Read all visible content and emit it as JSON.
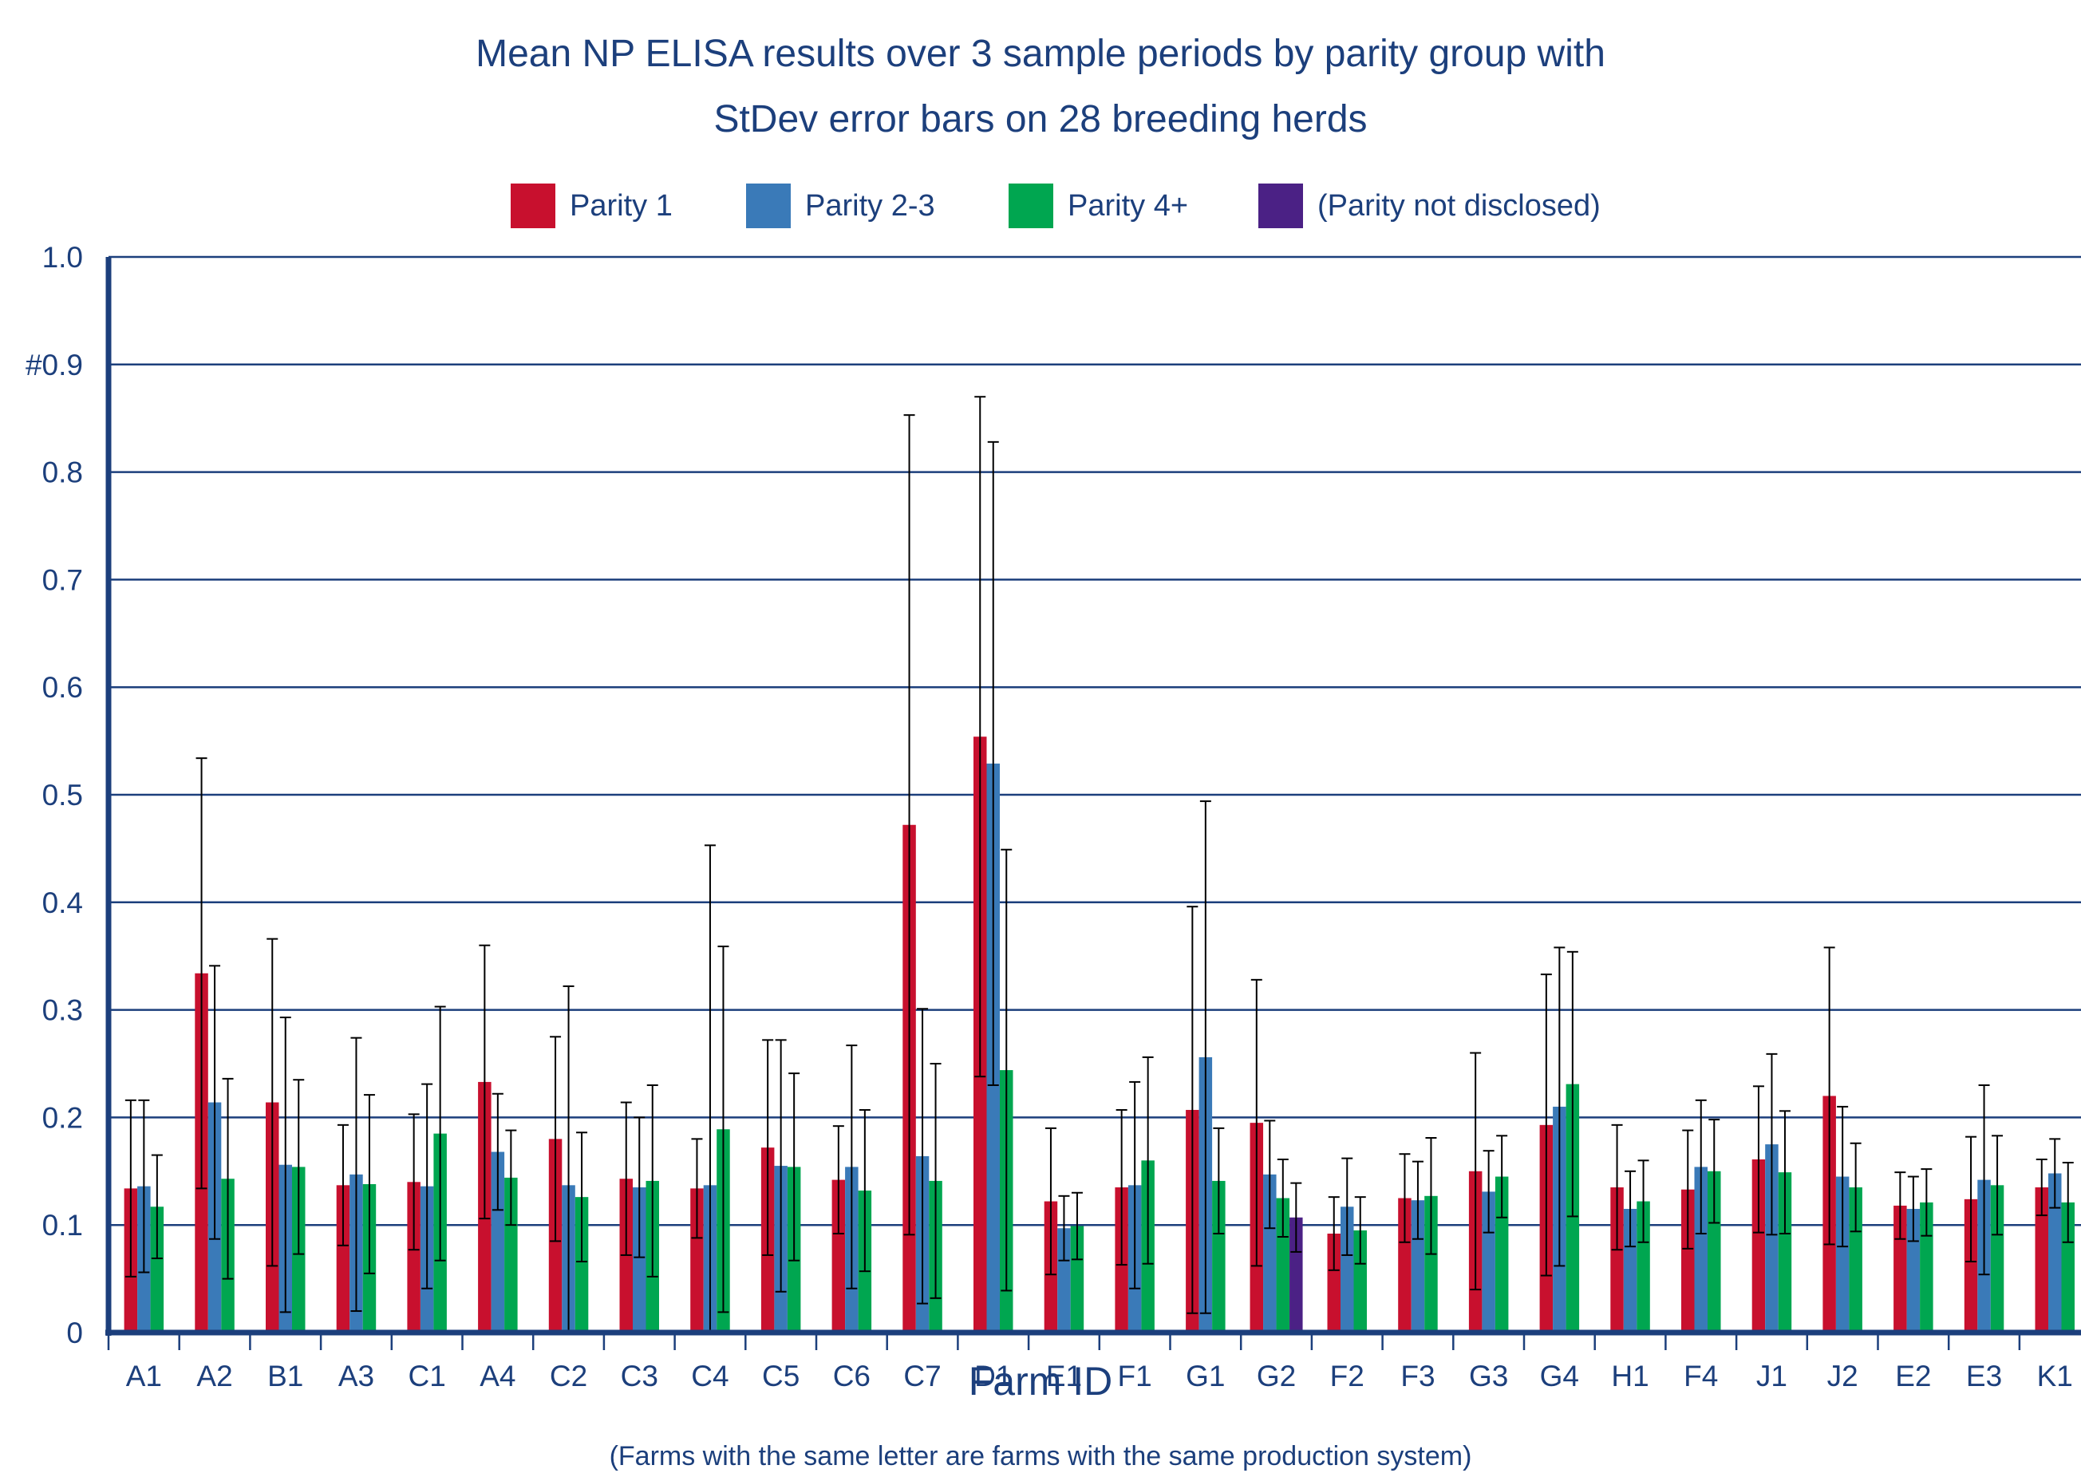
{
  "chart_data": {
    "type": "bar",
    "title_line1": "Mean NP ELISA results over 3 sample periods by parity group with",
    "title_line2": "StDev error bars on 28 breeding herds",
    "xlabel": "Farm ID",
    "xlabel_note": "(Farms with the same letter are farms with the same production system)",
    "ylabel": "",
    "ylim": [
      0,
      1.0
    ],
    "yticks": [
      {
        "value": 0,
        "label": "0"
      },
      {
        "value": 0.1,
        "label": "0.1"
      },
      {
        "value": 0.2,
        "label": "0.2"
      },
      {
        "value": 0.3,
        "label": "0.3"
      },
      {
        "value": 0.4,
        "label": "0.4"
      },
      {
        "value": 0.5,
        "label": "0.5"
      },
      {
        "value": 0.6,
        "label": "0.6"
      },
      {
        "value": 0.7,
        "label": "0.7"
      },
      {
        "value": 0.8,
        "label": "0.8"
      },
      {
        "value": 0.9,
        "label": "#0.9"
      },
      {
        "value": 1.0,
        "label": "1.0"
      }
    ],
    "grid": true,
    "legend_position": "top",
    "categories": [
      "A1",
      "A2",
      "B1",
      "A3",
      "C1",
      "A4",
      "C2",
      "C3",
      "C4",
      "C5",
      "C6",
      "C7",
      "D1",
      "E1",
      "F1",
      "G1",
      "G2",
      "F2",
      "F3",
      "G3",
      "G4",
      "H1",
      "F4",
      "J1",
      "J2",
      "E2",
      "E3",
      "K1"
    ],
    "series": [
      {
        "name": "Parity 1",
        "color": "#c8102e",
        "values": [
          0.134,
          0.334,
          0.214,
          0.137,
          0.14,
          0.233,
          0.18,
          0.143,
          0.134,
          0.172,
          0.142,
          0.472,
          0.554,
          0.122,
          0.135,
          0.207,
          0.195,
          0.092,
          0.125,
          0.15,
          0.193,
          0.135,
          0.133,
          0.161,
          0.22,
          0.118,
          0.124,
          0.135
        ],
        "errors": [
          0.082,
          0.2,
          0.152,
          0.056,
          0.063,
          0.127,
          0.095,
          0.071,
          0.046,
          0.1,
          0.05,
          0.381,
          0.316,
          0.068,
          0.072,
          0.189,
          0.133,
          0.034,
          0.041,
          0.11,
          0.14,
          0.058,
          0.055,
          0.068,
          0.138,
          0.031,
          0.058,
          0.026
        ]
      },
      {
        "name": "Parity 2-3",
        "color": "#3a7ab8",
        "values": [
          0.136,
          0.214,
          0.156,
          0.147,
          0.136,
          0.168,
          0.137,
          0.135,
          0.137,
          0.155,
          0.154,
          0.164,
          0.529,
          0.097,
          0.137,
          0.256,
          0.147,
          0.117,
          0.123,
          0.131,
          0.21,
          0.115,
          0.154,
          0.175,
          0.145,
          0.115,
          0.142,
          0.148
        ],
        "errors": [
          0.08,
          0.127,
          0.137,
          0.127,
          0.095,
          0.054,
          0.185,
          0.065,
          0.316,
          0.117,
          0.113,
          0.137,
          0.299,
          0.03,
          0.096,
          0.238,
          0.05,
          0.045,
          0.036,
          0.038,
          0.148,
          0.035,
          0.062,
          0.084,
          0.065,
          0.03,
          0.088,
          0.032
        ]
      },
      {
        "name": "Parity 4+",
        "color": "#00a650",
        "values": [
          0.117,
          0.143,
          0.154,
          0.138,
          0.185,
          0.144,
          0.126,
          0.141,
          0.189,
          0.154,
          0.132,
          0.141,
          0.244,
          0.099,
          0.16,
          0.141,
          0.125,
          0.095,
          0.127,
          0.145,
          0.231,
          0.122,
          0.15,
          0.149,
          0.135,
          0.121,
          0.137,
          0.121
        ],
        "errors": [
          0.048,
          0.093,
          0.081,
          0.083,
          0.118,
          0.044,
          0.06,
          0.089,
          0.17,
          0.087,
          0.075,
          0.109,
          0.205,
          0.031,
          0.096,
          0.049,
          0.036,
          0.031,
          0.054,
          0.038,
          0.123,
          0.038,
          0.048,
          0.057,
          0.041,
          0.031,
          0.046,
          0.037
        ]
      },
      {
        "name": "(Parity not disclosed)",
        "color": "#4b2185",
        "values": [
          null,
          null,
          null,
          null,
          null,
          null,
          null,
          null,
          null,
          null,
          null,
          null,
          null,
          null,
          null,
          null,
          0.107,
          null,
          null,
          null,
          null,
          null,
          null,
          null,
          null,
          null,
          null,
          null
        ],
        "errors": [
          null,
          null,
          null,
          null,
          null,
          null,
          null,
          null,
          null,
          null,
          null,
          null,
          null,
          null,
          null,
          null,
          0.032,
          null,
          null,
          null,
          null,
          null,
          null,
          null,
          null,
          null,
          null,
          null
        ]
      }
    ]
  }
}
